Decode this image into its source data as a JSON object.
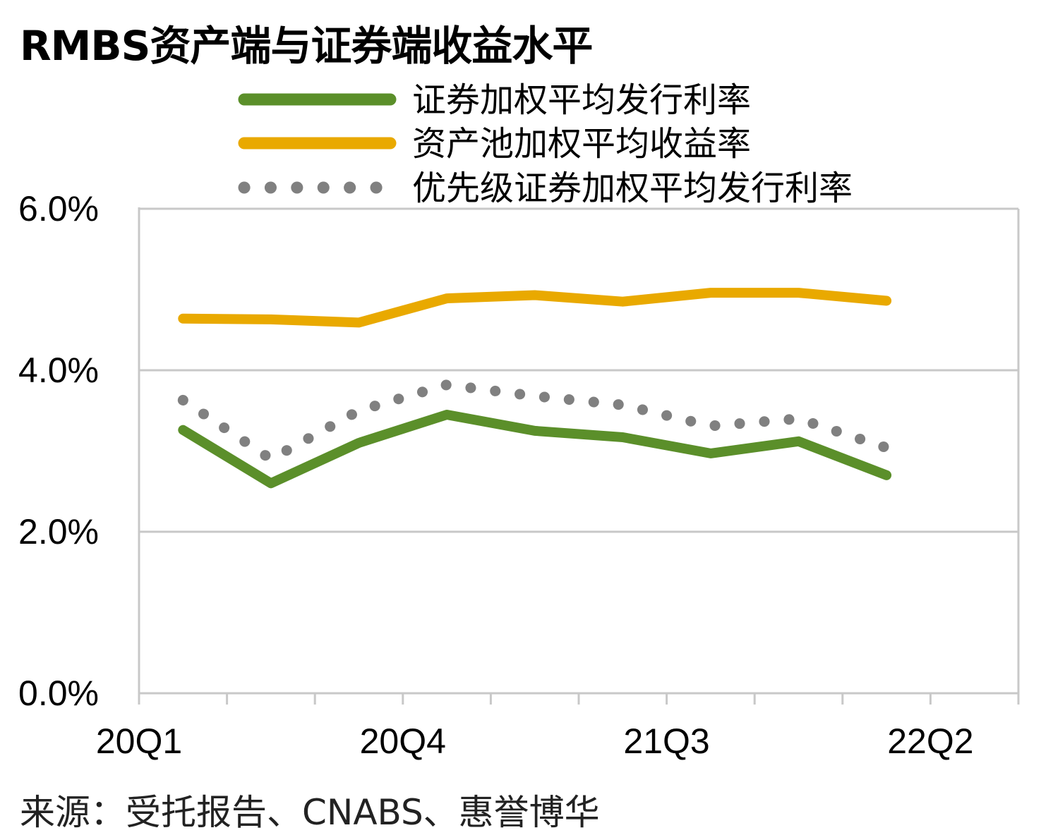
{
  "title": "RMBS资产端与证券端收益水平",
  "source": "来源：受托报告、CNABS、惠誉博华",
  "colors": {
    "security_rate": "#5b8f2a",
    "asset_pool_rate": "#e9a900",
    "senior_rate": "#808080",
    "axis": "#c8c8c8",
    "grid": "#c8c8c8"
  },
  "chart_data": {
    "type": "line",
    "title": "RMBS资产端与证券端收益水平",
    "xlabel": "",
    "ylabel": "",
    "ylim": [
      0,
      6
    ],
    "yticks": [
      0,
      2,
      4,
      6
    ],
    "ytick_labels": [
      "0.0%",
      "2.0%",
      "4.0%",
      "6.0%"
    ],
    "x_tick_labels": [
      "20Q1",
      "20Q4",
      "21Q3",
      "22Q2"
    ],
    "x_tick_label_quarters": [
      0,
      3,
      6,
      9
    ],
    "num_quarters": 10,
    "grid": true,
    "legend_position": "top",
    "series": [
      {
        "name": "证券加权平均发行利率",
        "style": "solid",
        "color": "#5b8f2a",
        "x": [
          0.5,
          1.5,
          2.5,
          3.5,
          4.5,
          5.5,
          6.5,
          7.5,
          8.5
        ],
        "values": [
          3.26,
          2.6,
          3.1,
          3.45,
          3.25,
          3.17,
          2.97,
          3.12,
          2.7
        ]
      },
      {
        "name": "资产池加权平均收益率",
        "style": "solid",
        "color": "#e9a900",
        "x": [
          0.5,
          1.5,
          2.5,
          3.5,
          4.5,
          5.5,
          6.5,
          7.5,
          8.5
        ],
        "values": [
          4.64,
          4.63,
          4.59,
          4.89,
          4.93,
          4.85,
          4.96,
          4.96,
          4.86
        ]
      },
      {
        "name": "优先级证券加权平均发行利率",
        "style": "dotted",
        "color": "#808080",
        "x": [
          0.5,
          1.5,
          2.5,
          3.5,
          4.5,
          5.5,
          6.5,
          7.5,
          8.5
        ],
        "values": [
          3.63,
          2.9,
          3.5,
          3.82,
          3.68,
          3.57,
          3.31,
          3.4,
          3.04
        ]
      }
    ]
  }
}
